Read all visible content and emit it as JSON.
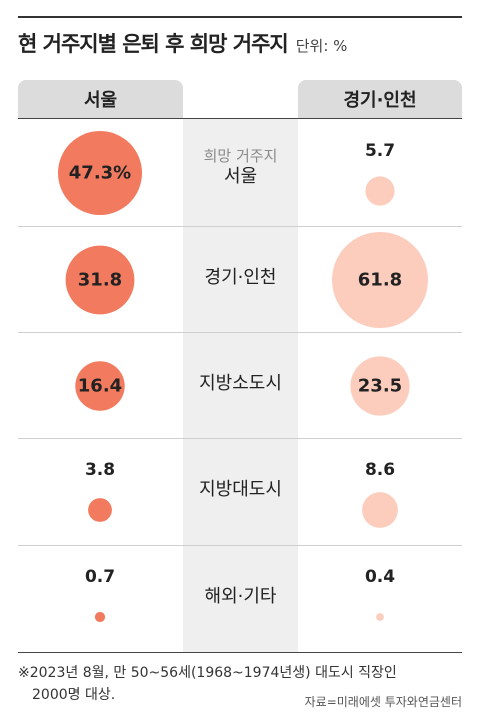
{
  "title": "현 거주지별 은퇴 후 희망 거주지",
  "unit": "단위: %",
  "headers": {
    "left": "서울",
    "right": "경기·인천"
  },
  "middle_sub_label": "희망 거주지",
  "colors": {
    "bubble_left": "#f17a5f",
    "bubble_right": "#fccdbd"
  },
  "chart_data": {
    "type": "bubble",
    "categories": [
      "서울",
      "경기·인천",
      "지방소도시",
      "지방대도시",
      "해외·기타"
    ],
    "series": [
      {
        "name": "서울",
        "values": [
          47.3,
          31.8,
          16.4,
          3.8,
          0.7
        ],
        "labels": [
          "47.3%",
          "31.8",
          "16.4",
          "3.8",
          "0.7"
        ]
      },
      {
        "name": "경기·인천",
        "values": [
          5.7,
          61.8,
          23.5,
          8.6,
          0.4
        ],
        "labels": [
          "5.7",
          "61.8",
          "23.5",
          "8.6",
          "0.4"
        ]
      }
    ]
  },
  "note": {
    "line1": "※2023년 8월, 만 50~56세(1968~1974년생) 대도시 직장인",
    "line2": "2000명 대상."
  },
  "source": "자료=미래에셋 투자와연금센터"
}
